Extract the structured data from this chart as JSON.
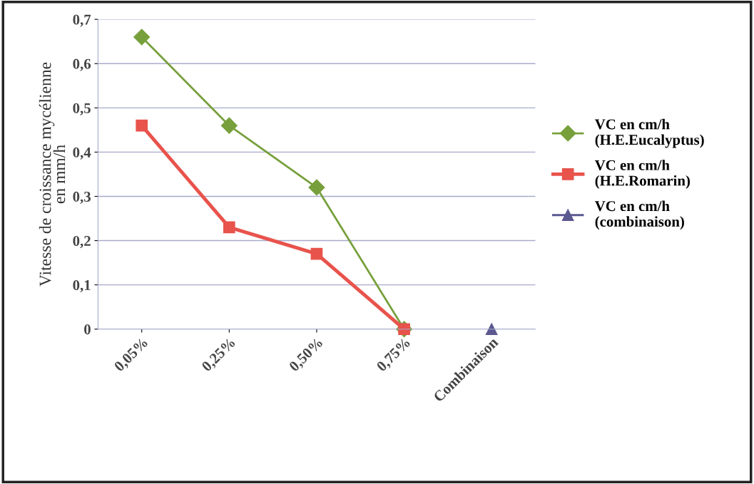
{
  "chart_data": {
    "type": "line",
    "ylabel": "Vitesse de croissance mycélienne\nen mm/h",
    "categories": [
      "0,05%",
      "0,25%",
      "0,50%",
      "0,75%",
      "Combinaison"
    ],
    "series": [
      {
        "name": "VC en cm/h\n(H.E.Eucalyptus)",
        "color": "#77a03c",
        "marker": "diamond",
        "values": [
          0.66,
          0.46,
          0.32,
          0,
          null
        ]
      },
      {
        "name": "VC en cm/h\n(H.E.Romarin)",
        "color": "#e8534c",
        "marker": "square",
        "values": [
          0.46,
          0.23,
          0.17,
          0,
          null
        ]
      },
      {
        "name": "VC en cm/h\n(combinaison)",
        "color": "#5b5890",
        "marker": "triangle",
        "values": [
          null,
          null,
          null,
          null,
          0
        ]
      }
    ],
    "ylim": [
      0,
      0.7
    ],
    "yticks": [
      {
        "value": 0,
        "label": "0"
      },
      {
        "value": 0.1,
        "label": "0,1"
      },
      {
        "value": 0.2,
        "label": "0,2"
      },
      {
        "value": 0.3,
        "label": "0,3"
      },
      {
        "value": 0.4,
        "label": "0,4"
      },
      {
        "value": 0.5,
        "label": "0,5"
      },
      {
        "value": 0.6,
        "label": "0,6"
      },
      {
        "value": 0.7,
        "label": "0,7"
      }
    ],
    "grid": "y",
    "legend": "right"
  }
}
